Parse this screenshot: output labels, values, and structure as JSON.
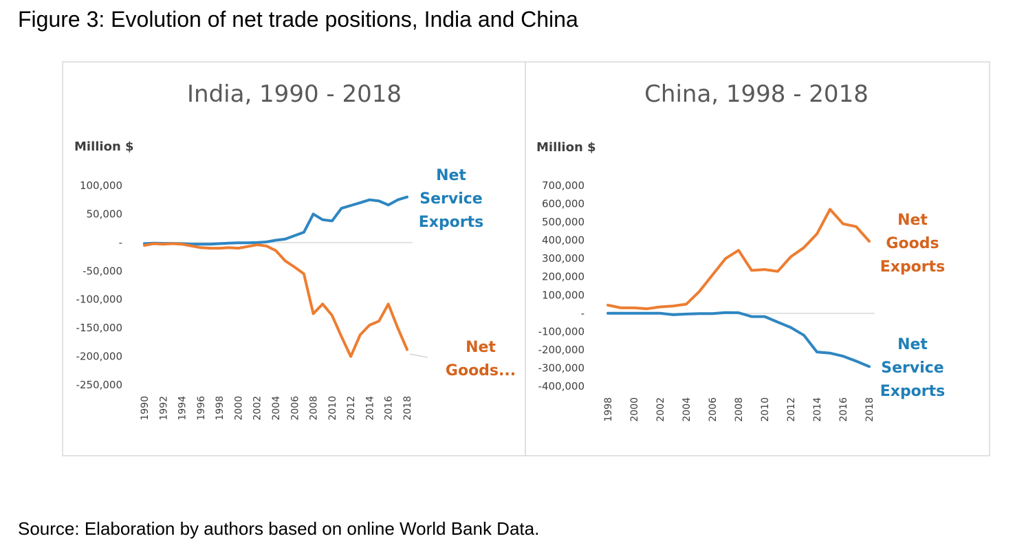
{
  "figure": {
    "title": "Figure 3: Evolution of net trade positions, India and China",
    "source": "Source: Elaboration by authors based on online World Bank Data."
  },
  "colors": {
    "goods": "#ED7D31",
    "service": "#2E86C1",
    "service_label": "#1F7FB8",
    "goods_label": "#D5641E",
    "axis": "#D9D9D9",
    "panel_border": "#D9D9D9"
  },
  "chart_data": [
    {
      "type": "line",
      "title": "India, 1990 - 2018",
      "ylabel": "Million $",
      "xlabel": "",
      "ylim": [
        -250000,
        100000
      ],
      "yticks": [
        100000,
        50000,
        0,
        -50000,
        -100000,
        -150000,
        -200000,
        -250000
      ],
      "ytick_labels": [
        "100,000",
        "50,000",
        "-",
        "-50,000",
        "-100,000",
        "-150,000",
        "-200,000",
        "-250,000"
      ],
      "x": [
        1990,
        1991,
        1992,
        1993,
        1994,
        1995,
        1996,
        1997,
        1998,
        1999,
        2000,
        2001,
        2002,
        2003,
        2004,
        2005,
        2006,
        2007,
        2008,
        2009,
        2010,
        2011,
        2012,
        2013,
        2014,
        2015,
        2016,
        2017,
        2018
      ],
      "xtick_labels": [
        "1990",
        "1992",
        "1994",
        "1996",
        "1998",
        "2000",
        "2002",
        "2004",
        "2006",
        "2008",
        "2010",
        "2012",
        "2014",
        "2016",
        "2018"
      ],
      "grid": false,
      "series": [
        {
          "name": "Net Service Exports",
          "label_lines": [
            "Net",
            "Service",
            "Exports"
          ],
          "key": "service",
          "values": [
            -2000,
            -1000,
            -1500,
            -1500,
            -2000,
            -3000,
            -3000,
            -3000,
            -2000,
            -1000,
            -500,
            -500,
            0,
            1000,
            4000,
            6000,
            12000,
            18000,
            50000,
            40000,
            38000,
            60000,
            65000,
            70000,
            75000,
            73000,
            66000,
            75000,
            80000
          ]
        },
        {
          "name": "Net Goods...",
          "label_lines": [
            "Net",
            "Goods..."
          ],
          "key": "goods",
          "values": [
            -5000,
            -2000,
            -3000,
            -2000,
            -3000,
            -6000,
            -9000,
            -10000,
            -10000,
            -9000,
            -10000,
            -7000,
            -4000,
            -6000,
            -14000,
            -32000,
            -43000,
            -55000,
            -125000,
            -108000,
            -128000,
            -165000,
            -200000,
            -162000,
            -145000,
            -138000,
            -108000,
            -150000,
            -188000
          ]
        }
      ]
    },
    {
      "type": "line",
      "title": "China, 1998 - 2018",
      "ylabel": "Million $",
      "xlabel": "",
      "ylim": [
        -400000,
        700000
      ],
      "yticks": [
        700000,
        600000,
        500000,
        400000,
        300000,
        200000,
        100000,
        0,
        -100000,
        -200000,
        -300000,
        -400000
      ],
      "ytick_labels": [
        "700,000",
        "600,000",
        "500,000",
        "400,000",
        "300,000",
        "200,000",
        "100,000",
        "-",
        "-100,000",
        "-200,000",
        "-300,000",
        "-400,000"
      ],
      "x": [
        1998,
        1999,
        2000,
        2001,
        2002,
        2003,
        2004,
        2005,
        2006,
        2007,
        2008,
        2009,
        2010,
        2011,
        2012,
        2013,
        2014,
        2015,
        2016,
        2017,
        2018
      ],
      "xtick_labels": [
        "1998",
        "2000",
        "2002",
        "2004",
        "2006",
        "2008",
        "2010",
        "2012",
        "2014",
        "2016",
        "2018"
      ],
      "grid": false,
      "series": [
        {
          "name": "Net Goods Exports",
          "label_lines": [
            "Net",
            "Goods",
            "Exports"
          ],
          "key": "goods",
          "values": [
            45000,
            30000,
            30000,
            25000,
            35000,
            40000,
            50000,
            120000,
            210000,
            300000,
            345000,
            235000,
            240000,
            230000,
            310000,
            360000,
            435000,
            570000,
            490000,
            475000,
            395000
          ]
        },
        {
          "name": "Net Service Exports",
          "label_lines": [
            "Net",
            "Service",
            "Exports"
          ],
          "key": "service",
          "values": [
            0,
            0,
            0,
            0,
            0,
            -8000,
            -4000,
            -2000,
            -2000,
            4000,
            3000,
            -18000,
            -18000,
            -48000,
            -78000,
            -120000,
            -212000,
            -218000,
            -235000,
            -262000,
            -292000
          ]
        }
      ]
    }
  ]
}
